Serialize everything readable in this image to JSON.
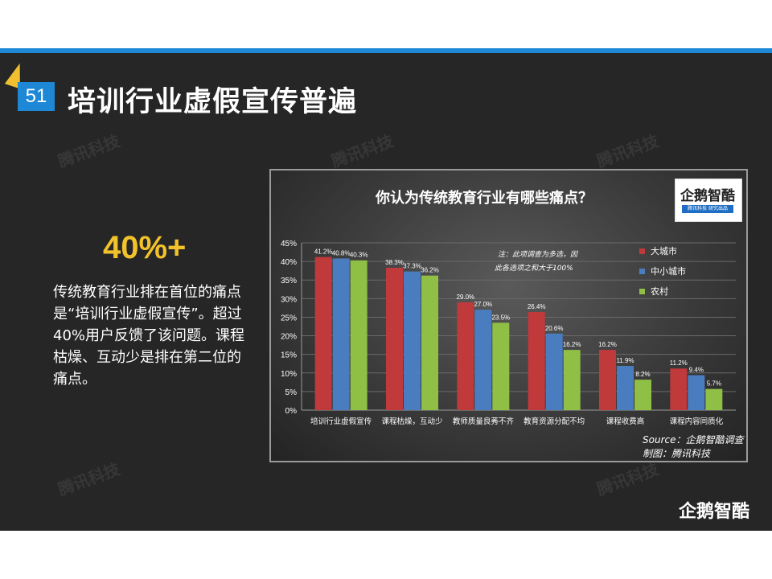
{
  "slide": {
    "page_number": "51",
    "title": "培训行业虚假宣传普遍",
    "stat": "40%+",
    "description": "传统教育行业排在首位的痛点是“培训行业虚假宣传”。超过40%用户反馈了该问题。课程枯燥、互动少是排在第二位的痛点。",
    "watermark_text": "腾讯科技",
    "bottom_logo": "企鹅智酷"
  },
  "chart_logo": {
    "name": "企鹅智酷",
    "subtitle": "腾讯科技 研究出品"
  },
  "source": {
    "line1": "Source：企鹅智酷调查",
    "line2": "制图：腾讯科技"
  },
  "colors": {
    "accent_blue": "#1e88d6",
    "stat_yellow": "#f2c22c",
    "series_red": "#c0393b",
    "series_blue": "#4a7dc0",
    "series_green": "#8fbf45"
  },
  "chart_data": {
    "type": "bar",
    "title": "你认为传统教育行业有哪些痛点？",
    "note": "注：此项调查为多选，因此各选项之和大于100%",
    "categories": [
      "培训行业虚假宣传",
      "课程枯燥，互动少",
      "教师质量良莠不齐",
      "教育资源分配不均",
      "课程收费高",
      "课程内容同质化"
    ],
    "series": [
      {
        "name": "大城市",
        "color": "#c0393b",
        "values": [
          41.2,
          38.3,
          29.0,
          26.4,
          16.2,
          11.2
        ]
      },
      {
        "name": "中小城市",
        "color": "#4a7dc0",
        "values": [
          40.8,
          37.3,
          27.0,
          20.6,
          11.9,
          9.4
        ]
      },
      {
        "name": "农村",
        "color": "#8fbf45",
        "values": [
          40.3,
          36.2,
          23.5,
          16.2,
          8.2,
          5.7
        ]
      }
    ],
    "ylim": [
      0,
      45
    ],
    "yticks": [
      "0%",
      "5%",
      "10%",
      "15%",
      "20%",
      "25%",
      "30%",
      "35%",
      "40%",
      "45%"
    ],
    "legend": "right",
    "grid": true
  }
}
